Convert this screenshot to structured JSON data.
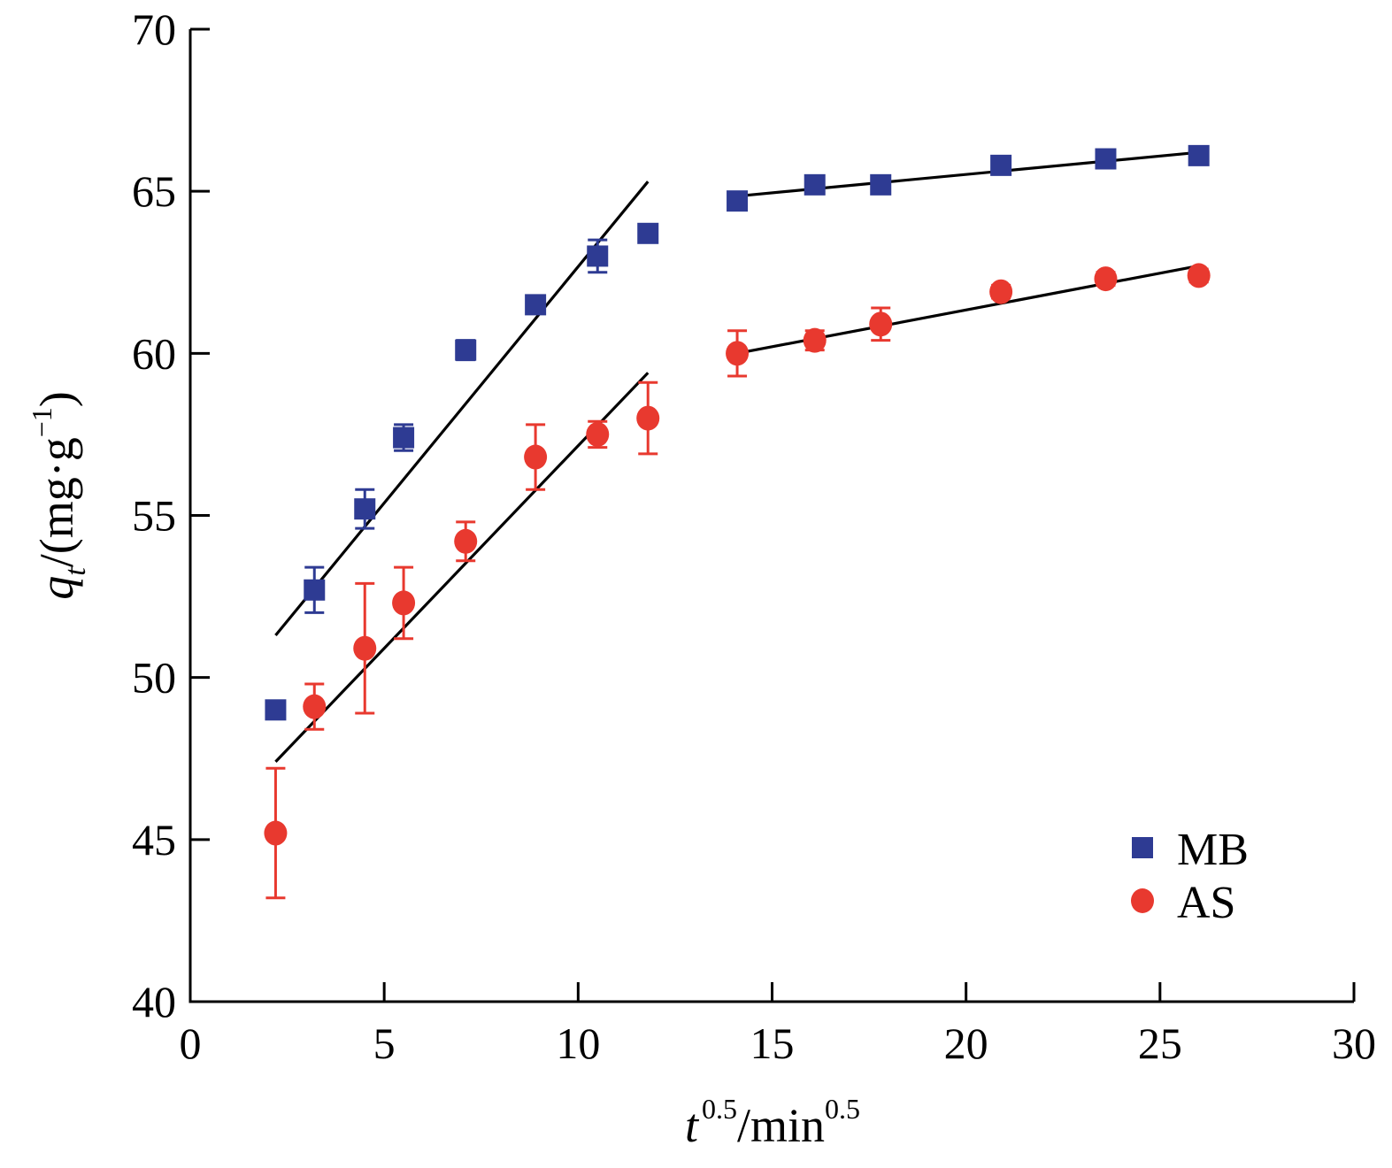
{
  "chart_data": {
    "type": "scatter",
    "xlabel": {
      "base": "t",
      "sup1": "0.5",
      "mid": "/min",
      "sup2": "0.5"
    },
    "ylabel": {
      "q": "q",
      "sub": "t",
      "mid": "/(mg·g",
      "sup": "−1",
      "end": ")"
    },
    "xlim": [
      0,
      30
    ],
    "ylim": [
      40,
      70
    ],
    "xticks": [
      0,
      5,
      10,
      15,
      20,
      25,
      30
    ],
    "yticks": [
      40,
      45,
      50,
      55,
      60,
      65,
      70
    ],
    "xtick_labels": [
      "0",
      "5",
      "10",
      "15",
      "20",
      "25",
      "30"
    ],
    "ytick_labels": [
      "40",
      "45",
      "50",
      "55",
      "60",
      "65",
      "70"
    ],
    "grid": false,
    "legend_position": "bottom-right",
    "series": [
      {
        "name": "MB",
        "marker": "square",
        "color": "#2e3b93",
        "x": [
          2.2,
          3.2,
          4.5,
          5.5,
          7.1,
          8.9,
          10.5,
          11.8,
          14.1,
          16.1,
          17.8,
          20.9,
          23.6,
          26.0
        ],
        "y": [
          49.0,
          52.7,
          55.2,
          57.4,
          60.1,
          61.5,
          63.0,
          63.7,
          64.7,
          65.2,
          65.2,
          65.8,
          66.0,
          66.1
        ],
        "err": [
          0,
          0.7,
          0.6,
          0.4,
          0.3,
          0.2,
          0.5,
          0.2,
          0.2,
          0.2,
          0.2,
          0.2,
          0.2,
          0.2
        ],
        "fits": [
          {
            "x": [
              2.2,
              11.8
            ],
            "y": [
              51.3,
              65.3
            ]
          },
          {
            "x": [
              14.1,
              26.0
            ],
            "y": [
              64.85,
              66.2
            ]
          }
        ]
      },
      {
        "name": "AS",
        "marker": "circle",
        "color": "#e8392f",
        "x": [
          2.2,
          3.2,
          4.5,
          5.5,
          7.1,
          8.9,
          10.5,
          11.8,
          14.1,
          16.1,
          17.8,
          20.9,
          23.6,
          26.0
        ],
        "y": [
          45.2,
          49.1,
          50.9,
          52.3,
          54.2,
          56.8,
          57.5,
          58.0,
          60.0,
          60.4,
          60.9,
          61.9,
          62.3,
          62.4
        ],
        "err": [
          2.0,
          0.7,
          2.0,
          1.1,
          0.6,
          1.0,
          0.4,
          1.1,
          0.7,
          0.3,
          0.5,
          0.2,
          0.2,
          0.2
        ],
        "fits": [
          {
            "x": [
              2.2,
              11.8
            ],
            "y": [
              47.4,
              59.4
            ]
          },
          {
            "x": [
              14.1,
              26.0
            ],
            "y": [
              60.0,
              62.7
            ]
          }
        ]
      }
    ]
  }
}
